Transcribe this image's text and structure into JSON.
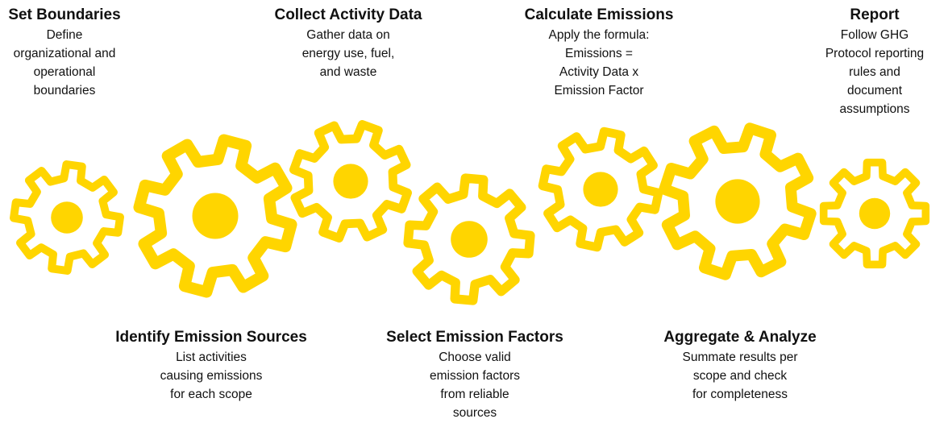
{
  "steps": [
    {
      "title": "Set Boundaries",
      "lines": [
        "Define",
        "organizational and",
        "operational",
        "boundaries"
      ]
    },
    {
      "title": "Identify Emission Sources",
      "lines": [
        "List activities",
        "causing emissions",
        "for each scope"
      ]
    },
    {
      "title": "Collect Activity Data",
      "lines": [
        "Gather data on",
        "energy use, fuel,",
        "and waste"
      ]
    },
    {
      "title": "Select Emission Factors",
      "lines": [
        "Choose valid",
        "emission factors",
        "from reliable",
        "sources"
      ]
    },
    {
      "title": "Calculate Emissions",
      "lines": [
        "Apply the formula:",
        "Emissions =",
        "Activity Data x",
        "Emission Factor"
      ]
    },
    {
      "title": "Aggregate & Analyze",
      "lines": [
        "Summate results per",
        "scope and check",
        "for completeness"
      ]
    },
    {
      "title": "Report",
      "lines": [
        "Follow GHG",
        "Protocol reporting",
        "rules and",
        "document",
        "assumptions"
      ]
    }
  ]
}
